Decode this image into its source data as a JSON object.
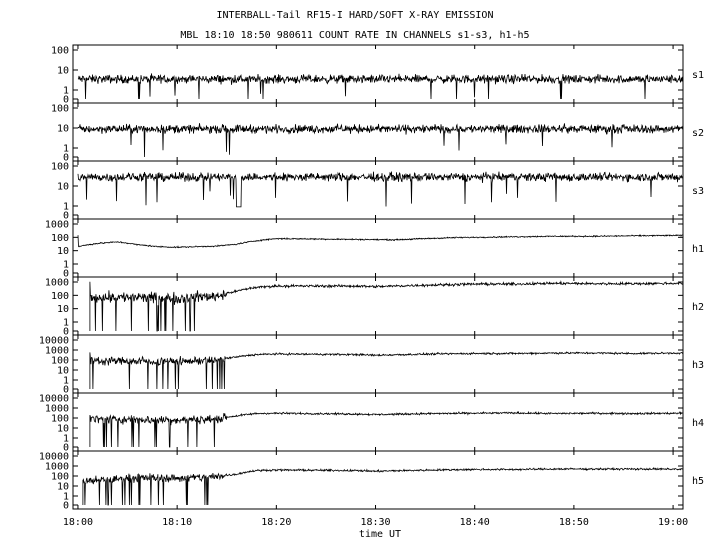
{
  "chart_data": {
    "type": "line",
    "title": "INTERBALL-Tail RF15-I HARD/SOFT X-RAY EMISSION",
    "subtitle": "MBL 18:10 18:50 980611  COUNT RATE IN CHANNELS s1-s3, h1-h5",
    "xlabel": "time UT",
    "x_ticks": [
      "18:00",
      "18:10",
      "18:20",
      "18:30",
      "18:40",
      "18:50",
      "19:00"
    ],
    "x_range_minutes": [
      -0.5,
      61.0
    ],
    "y_scale": "log",
    "grid": false,
    "panels": [
      {
        "name": "s1",
        "y_ticks": [
          "100",
          "10",
          "1",
          "0"
        ],
        "segments": [
          {
            "t": [
              0,
              61
            ],
            "v": [
              3.5,
              3.5
            ]
          }
        ]
      },
      {
        "name": "s2",
        "y_ticks": [
          "100",
          "10",
          "1",
          "0"
        ],
        "segments": [
          {
            "t": [
              0,
              61
            ],
            "v": [
              9,
              9
            ]
          }
        ]
      },
      {
        "name": "s3",
        "y_ticks": [
          "100",
          "10",
          "1",
          "0"
        ],
        "segments": [
          {
            "t": [
              0,
              61
            ],
            "v": [
              28,
              28
            ]
          }
        ]
      },
      {
        "name": "h1",
        "y_ticks": [
          "1000",
          "100",
          "10",
          "1",
          "0"
        ],
        "segments": [
          {
            "t": [
              0,
              2,
              4,
              6,
              8,
              10,
              12,
              14,
              16,
              18,
              20,
              24,
              28,
              32,
              38,
              44,
              48,
              52,
              56,
              61
            ],
            "v": [
              20,
              35,
              45,
              28,
              20,
              18,
              20,
              22,
              30,
              55,
              80,
              75,
              70,
              65,
              95,
              110,
              120,
              120,
              130,
              140
            ]
          }
        ]
      },
      {
        "name": "h2",
        "y_ticks": [
          "1000",
          "100",
          "10",
          "1",
          "0"
        ],
        "segments": [
          {
            "t": [
              1.2,
              5,
              10,
              14,
              16,
              18,
              20,
              28,
              30,
              36,
              40,
              44,
              48,
              52,
              56,
              61
            ],
            "v": [
              80,
              70,
              60,
              90,
              200,
              400,
              500,
              500,
              450,
              600,
              700,
              700,
              800,
              750,
              750,
              800
            ]
          }
        ]
      },
      {
        "name": "h3",
        "y_ticks": [
          "10000",
          "1000",
          "100",
          "10",
          "1",
          "0"
        ],
        "segments": [
          {
            "t": [
              1.2,
              5,
              10,
              14,
              16,
              18,
              20,
              28,
              30,
              36,
              40,
              44,
              48,
              52,
              56,
              61
            ],
            "v": [
              90,
              80,
              70,
              100,
              200,
              350,
              400,
              350,
              300,
              400,
              450,
              450,
              500,
              500,
              450,
              500
            ]
          }
        ]
      },
      {
        "name": "h4",
        "y_ticks": [
          "10000",
          "1000",
          "100",
          "10",
          "1",
          "0"
        ],
        "segments": [
          {
            "t": [
              1.2,
              5,
              10,
              14,
              16,
              18,
              20,
              28,
              30,
              36,
              40,
              44,
              48,
              52,
              56,
              61
            ],
            "v": [
              80,
              70,
              60,
              80,
              160,
              280,
              300,
              250,
              220,
              280,
              300,
              320,
              280,
              300,
              280,
              300
            ]
          }
        ]
      },
      {
        "name": "h5",
        "y_ticks": [
          "10000",
          "1000",
          "100",
          "10",
          "1",
          "0"
        ],
        "segments": [
          {
            "t": [
              0.5,
              3,
              5,
              7,
              10,
              14,
              16,
              18,
              20,
              28,
              30,
              36,
              40,
              44,
              48,
              52,
              56,
              61
            ],
            "v": [
              30,
              40,
              60,
              70,
              60,
              80,
              150,
              350,
              400,
              350,
              300,
              400,
              450,
              450,
              500,
              500,
              500,
              480
            ]
          }
        ]
      }
    ]
  }
}
